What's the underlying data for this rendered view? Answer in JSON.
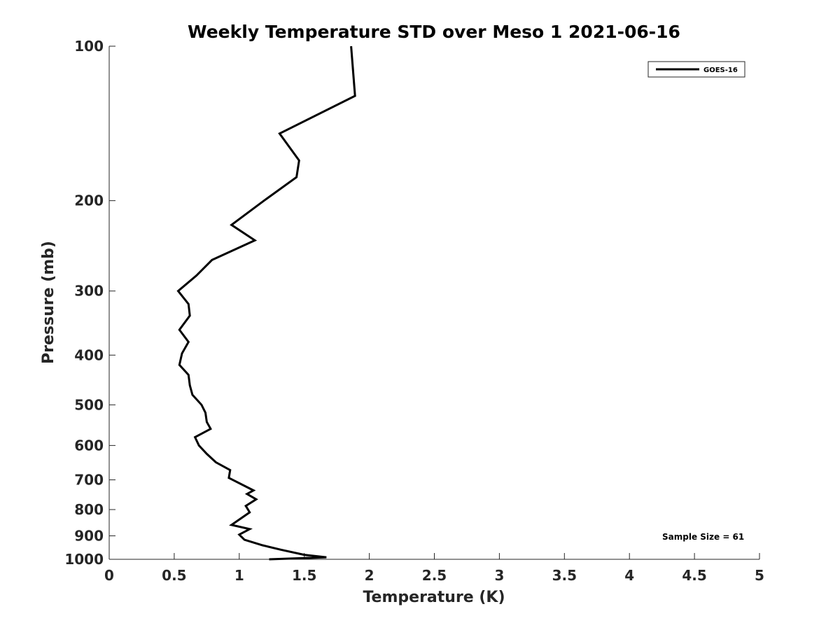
{
  "chart_data": {
    "type": "line",
    "title": "Weekly Temperature STD over Meso 1 2021-06-16",
    "xlabel": "Temperature (K)",
    "ylabel": "Pressure (mb)",
    "xlim": [
      0,
      5
    ],
    "ylim": [
      100,
      1000
    ],
    "y_scale": "log",
    "y_reversed": true,
    "xticks": [
      0,
      0.5,
      1,
      1.5,
      2,
      2.5,
      3,
      3.5,
      4,
      4.5,
      5
    ],
    "xtick_labels": [
      "0",
      "0.5",
      "1",
      "1.5",
      "2",
      "2.5",
      "3",
      "3.5",
      "4",
      "4.5",
      "5"
    ],
    "yticks": [
      100,
      200,
      300,
      400,
      500,
      600,
      700,
      800,
      900,
      1000
    ],
    "ytick_labels": [
      "100",
      "200",
      "300",
      "400",
      "500",
      "600",
      "700",
      "800",
      "900",
      "1000"
    ],
    "grid": false,
    "legend_position": "top-right",
    "series": [
      {
        "name": "GOES-16",
        "color": "#000000",
        "points": [
          [
            1.86,
            100
          ],
          [
            1.89,
            125
          ],
          [
            1.31,
            148
          ],
          [
            1.46,
            167
          ],
          [
            1.44,
            180
          ],
          [
            1.19,
            200
          ],
          [
            0.94,
            223
          ],
          [
            1.12,
            239
          ],
          [
            0.79,
            261
          ],
          [
            0.67,
            280
          ],
          [
            0.53,
            300
          ],
          [
            0.61,
            318
          ],
          [
            0.62,
            335
          ],
          [
            0.54,
            357
          ],
          [
            0.61,
            377
          ],
          [
            0.56,
            397
          ],
          [
            0.54,
            418
          ],
          [
            0.61,
            437
          ],
          [
            0.62,
            458
          ],
          [
            0.64,
            478
          ],
          [
            0.71,
            500
          ],
          [
            0.74,
            518
          ],
          [
            0.75,
            540
          ],
          [
            0.78,
            557
          ],
          [
            0.66,
            578
          ],
          [
            0.69,
            600
          ],
          [
            0.75,
            623
          ],
          [
            0.82,
            647
          ],
          [
            0.93,
            670
          ],
          [
            0.92,
            694
          ],
          [
            1.11,
            734
          ],
          [
            1.06,
            746
          ],
          [
            1.13,
            764
          ],
          [
            1.05,
            787
          ],
          [
            1.08,
            810
          ],
          [
            0.94,
            857
          ],
          [
            1.08,
            873
          ],
          [
            1.0,
            895
          ],
          [
            1.04,
            916
          ],
          [
            1.18,
            939
          ],
          [
            1.32,
            958
          ],
          [
            1.5,
            980
          ],
          [
            1.67,
            991
          ],
          [
            1.23,
            1000
          ]
        ]
      }
    ],
    "annotations": [
      "Sample Size = 61"
    ]
  },
  "colors": {
    "line": "#000000",
    "axis": "#262626",
    "background": "#ffffff"
  }
}
